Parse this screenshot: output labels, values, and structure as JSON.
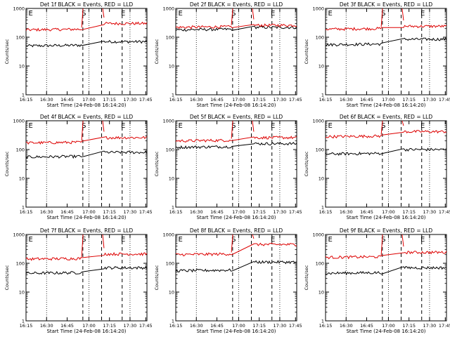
{
  "colors": {
    "events": "#000000",
    "lld": "#dd0000",
    "axis": "#000000",
    "background": "#ffffff"
  },
  "chart_data": [
    {
      "type": "line",
      "title": "Det 1f BLACK = Events, RED = LLD",
      "xlabel": "Start Time (24-Feb-08 16:14:20)",
      "ylabel": "Counts/sec",
      "x_ticks": [
        "16:15",
        "16:30",
        "16:45",
        "17:00",
        "17:15",
        "17:30",
        "17:45"
      ],
      "y_ticks": [
        "1",
        "10",
        "100",
        "1000"
      ],
      "ylim": [
        1,
        1000
      ],
      "y_scale": "log",
      "markers": [
        "E",
        "S",
        "E"
      ],
      "series": [
        {
          "name": "Events",
          "level_before": 50,
          "level_after": 70
        },
        {
          "name": "LLD",
          "level_before": 180,
          "level_after": 300
        }
      ]
    },
    {
      "type": "line",
      "title": "Det 2f BLACK = Events, RED = LLD",
      "xlabel": "Start Time (24-Feb-08 16:14:20)",
      "ylabel": "Counts/sec",
      "x_ticks": [
        "16:15",
        "16:30",
        "16:45",
        "17:00",
        "17:15",
        "17:30",
        "17:45"
      ],
      "y_ticks": [
        "1",
        "10",
        "100",
        "1000"
      ],
      "ylim": [
        1,
        1000
      ],
      "y_scale": "log",
      "markers": [
        "E",
        "S",
        "E"
      ],
      "series": [
        {
          "name": "Events",
          "level_before": 180,
          "level_after": 220
        },
        {
          "name": "LLD",
          "level_before": 220,
          "level_after": 260
        }
      ]
    },
    {
      "type": "line",
      "title": "Det 3f BLACK = Events, RED = LLD",
      "xlabel": "Start Time (24-Feb-08 16:14:20)",
      "ylabel": "Counts/sec",
      "x_ticks": [
        "16:15",
        "16:30",
        "16:45",
        "17:00",
        "17:15",
        "17:30",
        "17:45"
      ],
      "y_ticks": [
        "1",
        "10",
        "100",
        "1000"
      ],
      "ylim": [
        1,
        1000
      ],
      "y_scale": "log",
      "markers": [
        "E",
        "S",
        "E"
      ],
      "series": [
        {
          "name": "Events",
          "level_before": 55,
          "level_after": 85
        },
        {
          "name": "LLD",
          "level_before": 190,
          "level_after": 240
        }
      ]
    },
    {
      "type": "line",
      "title": "Det 4f BLACK = Events, RED = LLD",
      "xlabel": "Start Time (24-Feb-08 16:14:20)",
      "ylabel": "Counts/sec",
      "x_ticks": [
        "16:15",
        "16:30",
        "16:45",
        "17:00",
        "17:15",
        "17:30",
        "17:45"
      ],
      "y_ticks": [
        "1",
        "10",
        "100",
        "1000"
      ],
      "ylim": [
        1,
        1000
      ],
      "y_scale": "log",
      "markers": [
        "E",
        "S",
        "E"
      ],
      "series": [
        {
          "name": "Events",
          "level_before": 55,
          "level_after": 80
        },
        {
          "name": "LLD",
          "level_before": 170,
          "level_after": 260
        }
      ]
    },
    {
      "type": "line",
      "title": "Det 5f BLACK = Events, RED = LLD",
      "xlabel": "Start Time (24-Feb-08 16:14:20)",
      "ylabel": "Counts/sec",
      "x_ticks": [
        "16:15",
        "16:30",
        "16:45",
        "17:00",
        "17:15",
        "17:30",
        "17:45"
      ],
      "y_ticks": [
        "1",
        "10",
        "100",
        "1000"
      ],
      "ylim": [
        1,
        1000
      ],
      "y_scale": "log",
      "markers": [
        "E",
        "S",
        "E"
      ],
      "series": [
        {
          "name": "Events",
          "level_before": 120,
          "level_after": 160
        },
        {
          "name": "LLD",
          "level_before": 200,
          "level_after": 260
        }
      ]
    },
    {
      "type": "line",
      "title": "Det 6f BLACK = Events, RED = LLD",
      "xlabel": "Start Time (24-Feb-08 16:14:20)",
      "ylabel": "Counts/sec",
      "x_ticks": [
        "16:15",
        "16:30",
        "16:45",
        "17:00",
        "17:15",
        "17:30",
        "17:45"
      ],
      "y_ticks": [
        "1",
        "10",
        "100",
        "1000"
      ],
      "ylim": [
        1,
        1000
      ],
      "y_scale": "log",
      "markers": [
        "E",
        "S",
        "E"
      ],
      "series": [
        {
          "name": "Events",
          "level_before": 70,
          "level_after": 100
        },
        {
          "name": "LLD",
          "level_before": 280,
          "level_after": 420
        }
      ]
    },
    {
      "type": "line",
      "title": "Det 7f BLACK = Events, RED = LLD",
      "xlabel": "Start Time (24-Feb-08 16:14:20)",
      "ylabel": "Counts/sec",
      "x_ticks": [
        "16:15",
        "16:30",
        "16:45",
        "17:00",
        "17:15",
        "17:30",
        "17:45"
      ],
      "y_ticks": [
        "1",
        "10",
        "100",
        "1000"
      ],
      "ylim": [
        1,
        1000
      ],
      "y_scale": "log",
      "markers": [
        "E",
        "S",
        "E"
      ],
      "series": [
        {
          "name": "Events",
          "level_before": 45,
          "level_after": 70
        },
        {
          "name": "LLD",
          "level_before": 140,
          "level_after": 210
        }
      ]
    },
    {
      "type": "line",
      "title": "Det 8f BLACK = Events, RED = LLD",
      "xlabel": "Start Time (24-Feb-08 16:14:20)",
      "ylabel": "Counts/sec",
      "x_ticks": [
        "16:15",
        "16:30",
        "16:45",
        "17:00",
        "17:15",
        "17:30",
        "17:45"
      ],
      "y_ticks": [
        "1",
        "10",
        "100",
        "1000"
      ],
      "ylim": [
        1,
        1000
      ],
      "y_scale": "log",
      "markers": [
        "E",
        "S",
        "E"
      ],
      "series": [
        {
          "name": "Events",
          "level_before": 55,
          "level_after": 110
        },
        {
          "name": "LLD",
          "level_before": 200,
          "level_after": 450
        }
      ]
    },
    {
      "type": "line",
      "title": "Det 9f BLACK = Events, RED = LLD",
      "xlabel": "Start Time (24-Feb-08 16:14:20)",
      "ylabel": "Counts/sec",
      "x_ticks": [
        "16:15",
        "16:30",
        "16:45",
        "17:00",
        "17:15",
        "17:30",
        "17:45"
      ],
      "y_ticks": [
        "1",
        "10",
        "100",
        "1000"
      ],
      "ylim": [
        1,
        1000
      ],
      "y_scale": "log",
      "markers": [
        "E",
        "S",
        "E"
      ],
      "series": [
        {
          "name": "Events",
          "level_before": 45,
          "level_after": 70
        },
        {
          "name": "LLD",
          "level_before": 160,
          "level_after": 240
        }
      ]
    }
  ]
}
